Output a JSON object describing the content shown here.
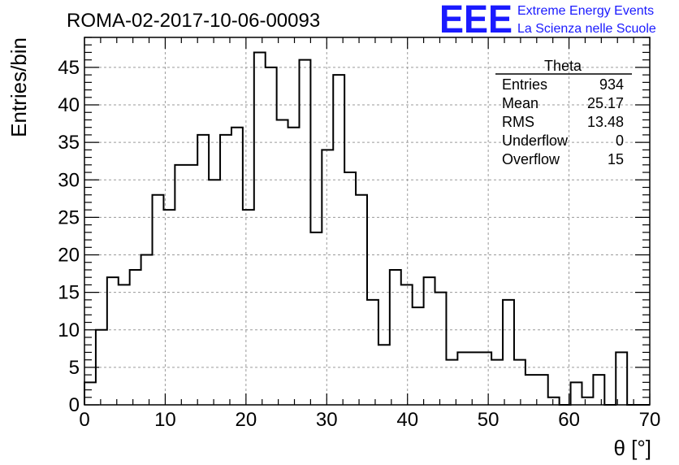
{
  "chart_data": {
    "type": "histogram",
    "title": "ROMA-02-2017-10-06-00093",
    "xlabel": "θ [°]",
    "ylabel": "Entries/bin",
    "xlim": [
      0,
      70
    ],
    "ylim": [
      0,
      49
    ],
    "x_ticks": [
      0,
      10,
      20,
      30,
      40,
      50,
      60,
      70
    ],
    "y_ticks": [
      0,
      5,
      10,
      15,
      20,
      25,
      30,
      35,
      40,
      45
    ],
    "grid": true,
    "bin_width": 1.4,
    "values": [
      3,
      10,
      17,
      16,
      18,
      20,
      28,
      26,
      32,
      32,
      36,
      30,
      36,
      37,
      26,
      47,
      45,
      38,
      37,
      46,
      23,
      34,
      44,
      31,
      28,
      14,
      8,
      18,
      16,
      13,
      17,
      15,
      6,
      7,
      7,
      7,
      6,
      14,
      6,
      4,
      4,
      1,
      0,
      3,
      1,
      4,
      0,
      7,
      0,
      0
    ],
    "line_color": "#000000",
    "stats": {
      "name": "Theta",
      "rows": [
        {
          "label": "Entries",
          "value": "934"
        },
        {
          "label": "Mean",
          "value": "25.17"
        },
        {
          "label": "RMS",
          "value": "13.48"
        },
        {
          "label": "Underflow",
          "value": "0"
        },
        {
          "label": "Overflow",
          "value": "15"
        }
      ]
    }
  },
  "logo": {
    "mark": "EEE",
    "line1": "Extreme Energy Events",
    "line2": "La Scienza nelle Scuole",
    "color": "#1a1aff"
  }
}
